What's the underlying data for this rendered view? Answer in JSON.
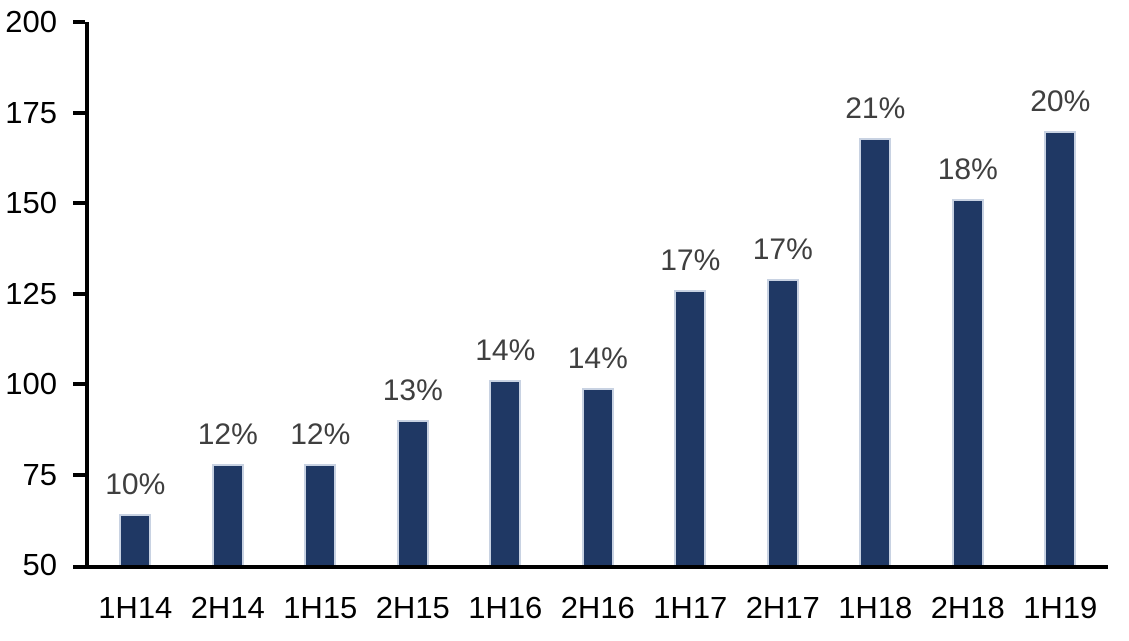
{
  "chart_data": {
    "type": "bar",
    "categories": [
      "1H14",
      "2H14",
      "1H15",
      "2H15",
      "1H16",
      "2H16",
      "1H17",
      "2H17",
      "1H18",
      "2H18",
      "1H19"
    ],
    "values": [
      64,
      78,
      78,
      90,
      101,
      99,
      126,
      129,
      168,
      151,
      170
    ],
    "bar_labels": [
      "10%",
      "12%",
      "12%",
      "13%",
      "14%",
      "14%",
      "17%",
      "17%",
      "21%",
      "18%",
      "20%"
    ],
    "title": "",
    "xlabel": "",
    "ylabel": "",
    "ylim": [
      50,
      200
    ],
    "y_ticks": [
      50,
      75,
      100,
      125,
      150,
      175,
      200
    ],
    "grid": "off",
    "legend": "none",
    "colors": {
      "bar_fill": "#1F3864",
      "bar_border": "#C8D2E2",
      "data_label": "#3F3F3F",
      "axis_text": "#000000",
      "axis_line": "#000000",
      "background": "#FFFFFF"
    }
  }
}
